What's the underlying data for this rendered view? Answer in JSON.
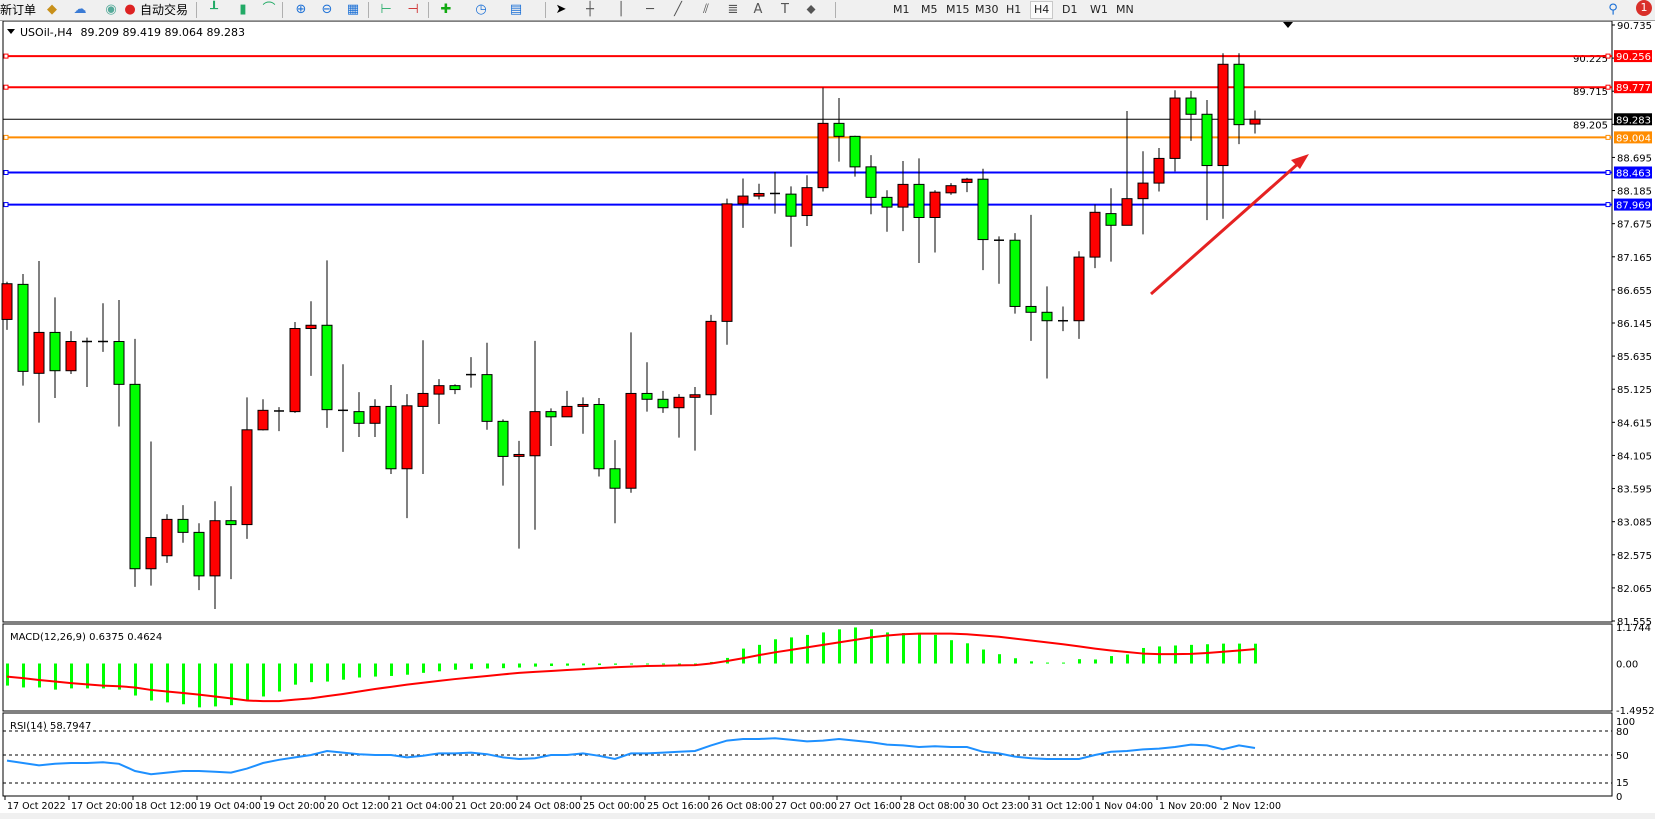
{
  "toolbar": {
    "new_order_label": "新订单",
    "auto_trading_label": "自动交易",
    "timeframes": [
      "M1",
      "M5",
      "M15",
      "M30",
      "H1",
      "H4",
      "D1",
      "W1",
      "MN"
    ],
    "active_timeframe": "H4",
    "notification_count": "1",
    "icons": [
      "new-order-icon",
      "history-icon",
      "cloud-icon",
      "signal-icon",
      "auto-trading-icon",
      "bar-chart-icon",
      "candlestick-icon",
      "line-chart-icon",
      "zoom-in-icon",
      "zoom-out-icon",
      "tile-windows-icon",
      "chart-shift-icon",
      "auto-scroll-icon",
      "add-indicator-icon",
      "periods-icon",
      "templates-icon",
      "cursor-icon",
      "crosshair-icon",
      "vertical-line-icon",
      "horizontal-line-icon",
      "trendline-icon",
      "equidistant-channel-icon",
      "fibonacci-icon",
      "text-icon",
      "text-label-icon",
      "arrows-icon",
      "search-icon",
      "notification-icon"
    ]
  },
  "chart_header": {
    "symbol": "USOil-,H4",
    "ohlc": "89.209 89.419 89.064 89.283"
  },
  "colors": {
    "up_candle": "#ff0000",
    "down_candle": "#00ff00",
    "macd_histogram": "#00ff00",
    "macd_signal": "#ff0000",
    "rsi_line": "#1e90ff",
    "arrow": "#e52222"
  },
  "chart_data": [
    {
      "type": "candlestick",
      "symbol": "USOil-",
      "timeframe": "H4",
      "ylim": [
        81.555,
        90.735
      ],
      "y_ticks": [
        "90.735",
        "90.225",
        "89.715",
        "89.205",
        "88.695",
        "88.185",
        "87.675",
        "87.165",
        "86.655",
        "86.145",
        "85.635",
        "85.125",
        "84.615",
        "84.105",
        "83.595",
        "83.085",
        "82.575",
        "82.065",
        "81.555"
      ],
      "x_tick_labels": [
        "17 Oct 2022",
        "17 Oct 20:00",
        "18 Oct 12:00",
        "19 Oct 04:00",
        "19 Oct 20:00",
        "20 Oct 12:00",
        "21 Oct 04:00",
        "21 Oct 20:00",
        "24 Oct 08:00",
        "25 Oct 00:00",
        "25 Oct 16:00",
        "26 Oct 08:00",
        "27 Oct 00:00",
        "27 Oct 16:00",
        "28 Oct 08:00",
        "30 Oct 23:00",
        "31 Oct 12:00",
        "1 Nov 04:00",
        "1 Nov 20:00",
        "2 Nov 12:00"
      ],
      "x_tick_every_n_bars": 4,
      "ohlc": [
        [
          86.2,
          86.78,
          86.04,
          86.75
        ],
        [
          86.74,
          86.9,
          85.18,
          85.4
        ],
        [
          85.37,
          87.1,
          84.61,
          86.0
        ],
        [
          86.0,
          86.54,
          84.99,
          85.41
        ],
        [
          85.41,
          86.02,
          85.36,
          85.86
        ],
        [
          85.86,
          85.92,
          85.16,
          85.86
        ],
        [
          85.86,
          86.45,
          85.7,
          85.86
        ],
        [
          85.86,
          86.5,
          84.55,
          85.2
        ],
        [
          85.2,
          85.9,
          82.08,
          82.36
        ],
        [
          82.36,
          84.32,
          82.1,
          82.84
        ],
        [
          82.56,
          83.2,
          82.45,
          83.12
        ],
        [
          83.12,
          83.34,
          82.76,
          82.92
        ],
        [
          82.92,
          83.06,
          82.03,
          82.25
        ],
        [
          82.25,
          83.4,
          81.74,
          83.1
        ],
        [
          83.1,
          83.63,
          82.2,
          83.04
        ],
        [
          83.04,
          85.0,
          82.82,
          84.5
        ],
        [
          84.5,
          84.97,
          84.49,
          84.8
        ],
        [
          84.79,
          84.85,
          84.48,
          84.79
        ],
        [
          84.78,
          86.16,
          84.76,
          86.06
        ],
        [
          86.06,
          86.48,
          85.33,
          86.11
        ],
        [
          86.11,
          87.11,
          84.53,
          84.81
        ],
        [
          84.8,
          85.51,
          84.16,
          84.8
        ],
        [
          84.78,
          85.08,
          84.39,
          84.6
        ],
        [
          84.6,
          84.97,
          84.39,
          84.86
        ],
        [
          84.86,
          85.19,
          83.82,
          83.9
        ],
        [
          83.9,
          85.05,
          83.14,
          84.87
        ],
        [
          84.86,
          85.88,
          83.82,
          85.06
        ],
        [
          85.05,
          85.28,
          84.59,
          85.18
        ],
        [
          85.18,
          85.2,
          85.05,
          85.12
        ],
        [
          85.35,
          85.62,
          85.15,
          85.35
        ],
        [
          85.35,
          85.84,
          84.5,
          84.63
        ],
        [
          84.63,
          84.66,
          83.64,
          84.09
        ],
        [
          84.09,
          84.33,
          82.67,
          84.12
        ],
        [
          84.1,
          85.87,
          82.96,
          84.78
        ],
        [
          84.78,
          84.83,
          84.25,
          84.7
        ],
        [
          84.7,
          85.1,
          84.7,
          84.86
        ],
        [
          84.86,
          85.0,
          84.44,
          84.89
        ],
        [
          84.89,
          84.99,
          83.78,
          83.9
        ],
        [
          83.9,
          84.34,
          83.06,
          83.6
        ],
        [
          83.6,
          86.0,
          83.53,
          85.06
        ],
        [
          85.06,
          85.54,
          84.78,
          84.97
        ],
        [
          84.97,
          85.1,
          84.76,
          84.84
        ],
        [
          84.84,
          85.05,
          84.38,
          85.0
        ],
        [
          85.0,
          85.16,
          84.18,
          85.04
        ],
        [
          85.04,
          86.27,
          84.73,
          86.17
        ],
        [
          86.17,
          88.06,
          85.81,
          87.98
        ],
        [
          87.98,
          88.37,
          87.61,
          88.1
        ],
        [
          88.1,
          88.29,
          88.05,
          88.14
        ],
        [
          88.14,
          88.47,
          87.83,
          88.14
        ],
        [
          88.13,
          88.25,
          87.32,
          87.79
        ],
        [
          87.8,
          88.42,
          87.64,
          88.23
        ],
        [
          88.23,
          89.77,
          88.17,
          89.22
        ],
        [
          89.22,
          89.61,
          88.63,
          89.02
        ],
        [
          89.02,
          89.03,
          88.4,
          88.55
        ],
        [
          88.55,
          88.73,
          87.82,
          88.08
        ],
        [
          88.08,
          88.19,
          87.55,
          87.93
        ],
        [
          87.93,
          88.64,
          87.56,
          88.28
        ],
        [
          88.28,
          88.68,
          87.07,
          87.77
        ],
        [
          87.77,
          88.19,
          87.23,
          88.16
        ],
        [
          88.15,
          88.3,
          88.12,
          88.26
        ],
        [
          88.31,
          88.38,
          88.16,
          88.36
        ],
        [
          88.36,
          88.52,
          86.96,
          87.43
        ],
        [
          87.42,
          87.48,
          86.75,
          87.42
        ],
        [
          87.42,
          87.53,
          86.29,
          86.4
        ],
        [
          86.4,
          87.81,
          85.87,
          86.31
        ],
        [
          86.31,
          86.71,
          85.29,
          86.18
        ],
        [
          86.18,
          86.4,
          86.02,
          86.18
        ],
        [
          86.18,
          87.25,
          85.9,
          87.16
        ],
        [
          87.16,
          87.97,
          86.99,
          87.85
        ],
        [
          87.83,
          88.22,
          87.09,
          87.65
        ],
        [
          87.65,
          89.41,
          87.65,
          88.06
        ],
        [
          88.06,
          88.79,
          87.51,
          88.3
        ],
        [
          88.3,
          88.84,
          88.17,
          88.68
        ],
        [
          88.68,
          89.73,
          88.48,
          89.61
        ],
        [
          89.61,
          89.72,
          88.95,
          89.36
        ],
        [
          89.36,
          89.58,
          87.73,
          88.57
        ],
        [
          88.57,
          90.3,
          87.75,
          90.13
        ],
        [
          90.13,
          90.3,
          88.9,
          89.2
        ],
        [
          89.209,
          89.419,
          89.064,
          89.283
        ]
      ],
      "horizontal_lines": [
        {
          "price": "90.256",
          "color": "#ff0000"
        },
        {
          "price": "89.777",
          "color": "#ff0000"
        },
        {
          "price": "89.283",
          "color": "#000000"
        },
        {
          "price": "89.004",
          "color": "#ff8c00"
        },
        {
          "price": "88.463",
          "color": "#0000ff"
        },
        {
          "price": "87.969",
          "color": "#0000ff"
        }
      ]
    },
    {
      "type": "bar+line",
      "label": "MACD(12,26,9) 0.6375 0.4624",
      "ylim": [
        -1.4952,
        1.1744
      ],
      "y_ticks": [
        "1.1744",
        "0.00",
        "-1.4952"
      ],
      "histogram": [
        -0.71,
        -0.77,
        -0.77,
        -0.84,
        -0.8,
        -0.8,
        -0.8,
        -0.84,
        -1.03,
        -1.19,
        -1.25,
        -1.31,
        -1.41,
        -1.38,
        -1.34,
        -1.19,
        -1.06,
        -0.9,
        -0.68,
        -0.6,
        -0.58,
        -0.52,
        -0.45,
        -0.42,
        -0.4,
        -0.36,
        -0.3,
        -0.25,
        -0.2,
        -0.18,
        -0.16,
        -0.15,
        -0.13,
        -0.1,
        -0.08,
        -0.07,
        -0.06,
        -0.05,
        -0.04,
        -0.03,
        -0.02,
        -0.02,
        -0.01,
        -0.01,
        0.05,
        0.18,
        0.48,
        0.6,
        0.78,
        0.84,
        0.92,
        1.0,
        1.1,
        1.16,
        1.1,
        1.0,
        0.98,
        0.94,
        0.92,
        0.75,
        0.65,
        0.45,
        0.3,
        0.17,
        0.07,
        0.03,
        0.03,
        0.14,
        0.13,
        0.24,
        0.29,
        0.5,
        0.55,
        0.58,
        0.6,
        0.62,
        0.64,
        0.64,
        0.6375
      ],
      "signal": [
        -0.42,
        -0.47,
        -0.53,
        -0.58,
        -0.63,
        -0.67,
        -0.71,
        -0.73,
        -0.77,
        -0.85,
        -0.9,
        -0.95,
        -1.0,
        -1.06,
        -1.12,
        -1.19,
        -1.21,
        -1.21,
        -1.16,
        -1.12,
        -1.05,
        -0.98,
        -0.9,
        -0.82,
        -0.75,
        -0.68,
        -0.62,
        -0.56,
        -0.5,
        -0.45,
        -0.4,
        -0.35,
        -0.3,
        -0.27,
        -0.24,
        -0.21,
        -0.18,
        -0.15,
        -0.12,
        -0.1,
        -0.08,
        -0.07,
        -0.06,
        -0.05,
        0.0,
        0.08,
        0.17,
        0.27,
        0.36,
        0.44,
        0.52,
        0.6,
        0.68,
        0.76,
        0.84,
        0.9,
        0.94,
        0.96,
        0.96,
        0.96,
        0.94,
        0.9,
        0.86,
        0.8,
        0.74,
        0.68,
        0.62,
        0.55,
        0.48,
        0.42,
        0.37,
        0.32,
        0.3,
        0.3,
        0.31,
        0.34,
        0.38,
        0.42,
        0.4624
      ]
    },
    {
      "type": "line",
      "label": "RSI(14) 58.7947",
      "ylim": [
        0,
        100
      ],
      "y_ticks": [
        "100",
        "80",
        "50",
        "15",
        "0"
      ],
      "levels": [
        80,
        50,
        15
      ],
      "values": [
        43,
        40,
        37,
        39,
        40,
        40,
        41,
        39,
        30,
        26,
        28,
        30,
        30,
        29,
        28,
        33,
        40,
        44,
        47,
        50,
        55,
        53,
        51,
        50,
        50,
        47,
        49,
        52,
        52,
        53,
        51,
        47,
        45,
        46,
        50,
        50,
        52,
        49,
        45,
        52,
        52,
        53,
        54,
        55,
        62,
        68,
        70,
        70,
        71,
        69,
        67,
        68,
        70,
        68,
        66,
        63,
        62,
        60,
        61,
        60,
        60,
        54,
        52,
        48,
        46,
        45,
        45,
        45,
        50,
        54,
        55,
        57,
        58,
        60,
        63,
        62,
        57,
        62,
        58.7947
      ]
    }
  ]
}
